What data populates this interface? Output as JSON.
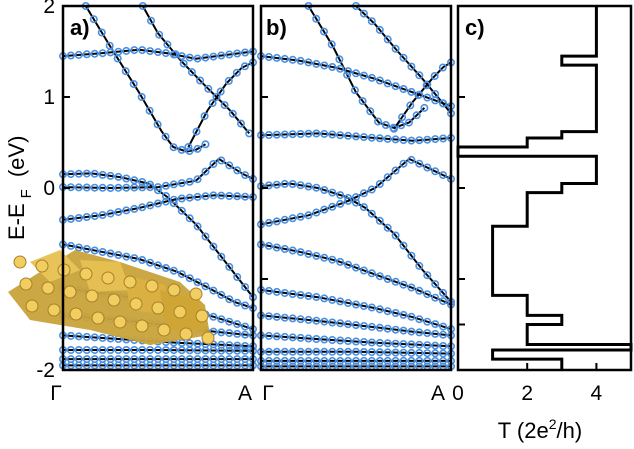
{
  "chart_data": [
    {
      "type": "scatter",
      "panel": "a)",
      "ylabel": "E-E_F (eV)",
      "ylabel_main": "E-E",
      "ylabel_sub": "F",
      "ylabel_unit": "(eV)",
      "x_tick_labels": [
        "Γ",
        "A"
      ],
      "ylim": [
        -2,
        2
      ],
      "y_ticks": [
        -2,
        0,
        1,
        2
      ],
      "y_tick_labels": [
        "-2",
        "0",
        "1",
        "2"
      ],
      "marker_color": "#4a90e2",
      "line_color": "#000000",
      "inset": "atomic-structure",
      "lines": [
        {
          "x": [
            0.12,
            0.25,
            0.4,
            0.52,
            0.58,
            0.65,
            0.7,
            0.75
          ],
          "y": [
            2.0,
            1.55,
            1.05,
            0.62,
            0.45,
            0.4,
            0.42,
            0.48
          ]
        },
        {
          "x": [
            0.42,
            0.5,
            0.62,
            0.75,
            0.88,
            0.98
          ],
          "y": [
            2.0,
            1.7,
            1.4,
            1.12,
            0.85,
            0.6
          ]
        },
        {
          "x": [
            0.66,
            0.76,
            0.86,
            0.94,
            1.0
          ],
          "y": [
            0.45,
            0.85,
            1.15,
            1.32,
            1.38
          ]
        },
        {
          "x": [
            0.0,
            0.2,
            0.4,
            0.55,
            0.7,
            0.85,
            1.0
          ],
          "y": [
            1.45,
            1.48,
            1.52,
            1.48,
            1.42,
            1.46,
            1.5
          ]
        },
        {
          "x": [
            0.0,
            0.15,
            0.3,
            0.45,
            0.55,
            0.7,
            0.85,
            1.0
          ],
          "y": [
            0.15,
            0.16,
            0.12,
            0.05,
            -0.1,
            -0.4,
            -0.8,
            -1.2
          ]
        },
        {
          "x": [
            0.0,
            0.25,
            0.5,
            0.7,
            0.82,
            0.95,
            1.0
          ],
          "y": [
            0.01,
            0.0,
            0.01,
            0.08,
            0.32,
            0.15,
            0.1
          ]
        },
        {
          "x": [
            0.0,
            0.2,
            0.4,
            0.6,
            0.8,
            1.0
          ],
          "y": [
            -0.35,
            -0.3,
            -0.22,
            -0.12,
            -0.08,
            -0.1
          ]
        },
        {
          "x": [
            0.0,
            0.2,
            0.4,
            0.6,
            0.75,
            0.9,
            1.0
          ],
          "y": [
            -0.62,
            -0.7,
            -0.78,
            -0.92,
            -1.08,
            -1.25,
            -1.32
          ]
        },
        {
          "x": [
            0.0,
            0.3,
            0.6,
            0.8,
            1.0
          ],
          "y": [
            -1.1,
            -1.18,
            -1.3,
            -1.42,
            -1.55
          ]
        },
        {
          "x": [
            0.0,
            0.3,
            0.6,
            0.8,
            1.0
          ],
          "y": [
            -1.4,
            -1.45,
            -1.52,
            -1.58,
            -1.62
          ]
        },
        {
          "x": [
            0.0,
            0.3,
            0.6,
            0.8,
            1.0
          ],
          "y": [
            -1.62,
            -1.66,
            -1.7,
            -1.72,
            -1.74
          ]
        },
        {
          "x": [
            0.0,
            0.5,
            1.0
          ],
          "y": [
            -1.78,
            -1.78,
            -1.79
          ]
        },
        {
          "x": [
            0.0,
            0.5,
            1.0
          ],
          "y": [
            -1.88,
            -1.88,
            -1.88
          ]
        },
        {
          "x": [
            0.0,
            0.5,
            1.0
          ],
          "y": [
            -1.95,
            -1.95,
            -1.95
          ]
        }
      ]
    },
    {
      "type": "scatter",
      "panel": "b)",
      "x_tick_labels": [
        "Γ",
        "A"
      ],
      "ylim": [
        -2,
        2
      ],
      "marker_color": "#4a90e2",
      "line_color": "#000000",
      "lines": [
        {
          "x": [
            0.25,
            0.38,
            0.5,
            0.62,
            0.7,
            0.78,
            0.86
          ],
          "y": [
            2.0,
            1.55,
            1.05,
            0.72,
            0.66,
            0.72,
            0.88
          ]
        },
        {
          "x": [
            0.5,
            0.6,
            0.72,
            0.85,
            0.95,
            1.0
          ],
          "y": [
            2.0,
            1.8,
            1.5,
            1.2,
            0.95,
            0.82
          ]
        },
        {
          "x": [
            0.7,
            0.8,
            0.9,
            0.96,
            1.0
          ],
          "y": [
            0.65,
            0.95,
            1.2,
            1.33,
            1.38
          ]
        },
        {
          "x": [
            0.0,
            0.2,
            0.4,
            0.6,
            0.8,
            1.0
          ],
          "y": [
            1.45,
            1.4,
            1.32,
            1.2,
            1.05,
            0.9
          ]
        },
        {
          "x": [
            0.0,
            0.15,
            0.3,
            0.45,
            0.55,
            0.7,
            0.85,
            1.0
          ],
          "y": [
            0.02,
            0.05,
            0.0,
            -0.1,
            -0.22,
            -0.5,
            -0.9,
            -1.25
          ]
        },
        {
          "x": [
            0.0,
            0.25,
            0.45,
            0.6,
            0.78,
            0.9,
            1.0
          ],
          "y": [
            -0.4,
            -0.3,
            -0.15,
            0.0,
            0.32,
            0.2,
            0.1
          ]
        },
        {
          "x": [
            0.0,
            0.3,
            0.6,
            0.8,
            1.0
          ],
          "y": [
            0.58,
            0.6,
            0.55,
            0.52,
            0.55
          ]
        },
        {
          "x": [
            0.0,
            0.2,
            0.4,
            0.6,
            0.8,
            1.0
          ],
          "y": [
            -0.62,
            -0.7,
            -0.8,
            -0.95,
            -1.1,
            -1.28
          ]
        },
        {
          "x": [
            0.0,
            0.3,
            0.6,
            0.8,
            1.0
          ],
          "y": [
            -1.12,
            -1.2,
            -1.32,
            -1.42,
            -1.55
          ]
        },
        {
          "x": [
            0.0,
            0.3,
            0.6,
            0.8,
            1.0
          ],
          "y": [
            -1.4,
            -1.46,
            -1.53,
            -1.58,
            -1.62
          ]
        },
        {
          "x": [
            0.0,
            0.3,
            0.6,
            0.8,
            1.0
          ],
          "y": [
            -1.62,
            -1.66,
            -1.7,
            -1.72,
            -1.74
          ]
        },
        {
          "x": [
            0.0,
            0.5,
            1.0
          ],
          "y": [
            -1.8,
            -1.8,
            -1.82
          ]
        },
        {
          "x": [
            0.0,
            0.5,
            1.0
          ],
          "y": [
            -1.9,
            -1.9,
            -1.9
          ]
        },
        {
          "x": [
            0.0,
            0.5,
            1.0
          ],
          "y": [
            -1.96,
            -1.96,
            -1.96
          ]
        }
      ]
    },
    {
      "type": "line",
      "panel": "c)",
      "xlabel": "T (2e²/h)",
      "xlabel_pre": "T (2e",
      "xlabel_sup": "2",
      "xlabel_post": "/h)",
      "xlim": [
        0,
        5
      ],
      "x_ticks": [
        0,
        2,
        4
      ],
      "x_tick_labels": [
        "0",
        "2",
        "4"
      ],
      "ylim": [
        -2,
        2
      ],
      "line_color": "#000000",
      "series": [
        {
          "y": [
            2.0,
            1.45,
            1.45,
            1.35,
            1.35,
            0.62,
            0.62,
            0.55,
            0.55,
            0.45,
            0.45,
            0.35,
            0.35,
            0.05,
            0.05,
            -0.05,
            -0.05,
            -0.42,
            -0.42,
            -1.18,
            -1.18,
            -1.4,
            -1.4,
            -1.5,
            -1.5,
            -1.72,
            -1.72,
            -1.78,
            -1.78,
            -1.88,
            -1.88,
            -2.0
          ],
          "T": [
            4,
            4,
            3,
            3,
            4,
            4,
            3,
            3,
            2,
            2,
            0,
            0,
            4,
            4,
            3,
            3,
            2,
            2,
            1,
            1,
            2,
            2,
            3,
            3,
            2,
            2,
            5,
            5,
            1,
            1,
            3,
            3
          ]
        }
      ]
    }
  ]
}
